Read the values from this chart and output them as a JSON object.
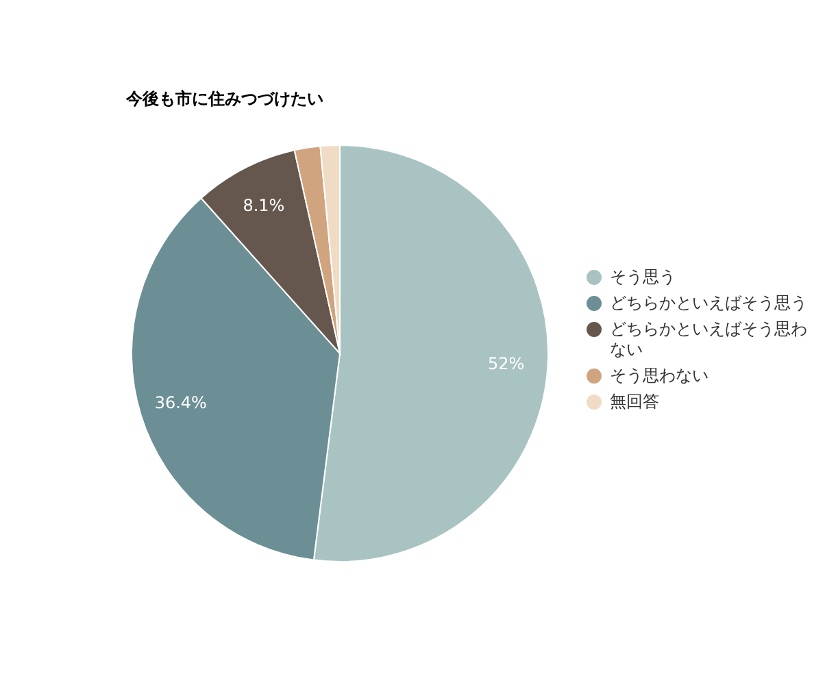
{
  "chart_data": {
    "type": "pie",
    "title": "今後も市に住みつづけたい",
    "categories": [
      "そう思う",
      "どちらかといえばそう思う",
      "どちらかといえばそう思わない",
      "そう思わない",
      "無回答"
    ],
    "values": [
      52,
      36.4,
      8.1,
      2.0,
      1.5
    ],
    "value_labels": [
      "52%",
      "36.4%",
      "8.1%",
      null,
      null
    ],
    "colors": [
      "#a9c3c3",
      "#6b8f94",
      "#65574d",
      "#cfa47f",
      "#f0dcc4"
    ],
    "legend": "right"
  }
}
